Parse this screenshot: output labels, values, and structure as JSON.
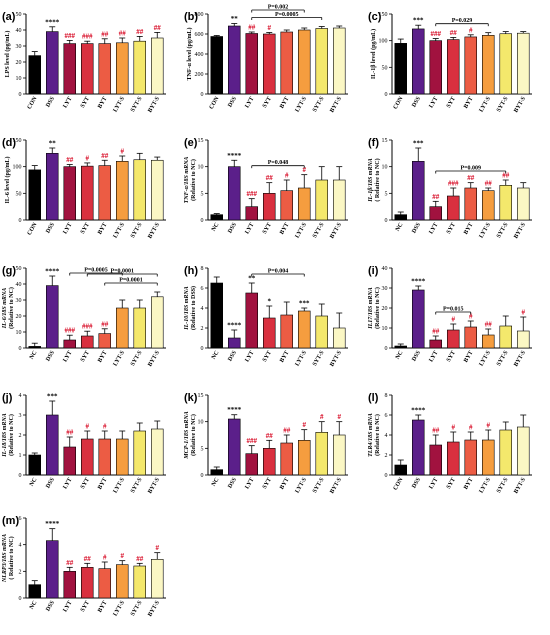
{
  "colors": {
    "CON": "#000000",
    "DSS": "#5b1f8a",
    "LYT": "#a1123f",
    "SYT": "#d9303f",
    "BYT": "#ec5c44",
    "LYT-S": "#f59d3f",
    "SYT-S": "#f4e86c",
    "BYT-S": "#fbf7c4",
    "NC": "#000000"
  },
  "chart_data": [
    {
      "id": "a",
      "type": "bar",
      "ylabel": "LPS level (pg/mL)",
      "ylim": [
        0,
        50
      ],
      "yticks": [
        0,
        10,
        20,
        30,
        40,
        50
      ],
      "categories": [
        "CON",
        "DSS",
        "LYT",
        "SYT",
        "BYT",
        "LYT-S",
        "SYT-S",
        "BYT-S"
      ],
      "values": [
        24,
        39,
        31.5,
        31.5,
        31.5,
        32,
        33,
        35
      ],
      "errors": [
        2.5,
        3,
        2,
        1.5,
        3,
        3,
        3,
        3.5
      ],
      "marks": [
        "",
        "****",
        "###",
        "###",
        "##",
        "##",
        "##",
        "##"
      ],
      "brackets": []
    },
    {
      "id": "b",
      "type": "bar",
      "ylabel": "TNF-α level (pg/mL)",
      "ylim": [
        0,
        800
      ],
      "yticks": [
        0,
        200,
        400,
        600,
        800
      ],
      "categories": [
        "CON",
        "DSS",
        "LYT",
        "SYT",
        "BYT",
        "LYT-S",
        "SYT-S",
        "BYT-S"
      ],
      "values": [
        575,
        680,
        605,
        600,
        620,
        640,
        655,
        660
      ],
      "errors": [
        10,
        25,
        15,
        15,
        20,
        20,
        20,
        20
      ],
      "marks": [
        "",
        "**",
        "##",
        "#",
        "",
        "",
        "",
        ""
      ],
      "brackets": [
        {
          "from": 2,
          "to": 6,
          "label": "P=0.0005"
        },
        {
          "from": 2,
          "to": 5,
          "label": "P=0.002"
        }
      ]
    },
    {
      "id": "c",
      "type": "bar",
      "ylabel": "IL-1β level (pg/mL)",
      "ylim": [
        0,
        150
      ],
      "yticks": [
        0,
        50,
        100,
        150
      ],
      "categories": [
        "CON",
        "DSS",
        "LYT",
        "SYT",
        "BYT",
        "LYT-S",
        "SYT-S",
        "BYT-S"
      ],
      "values": [
        95,
        122,
        100,
        102,
        107,
        110,
        113,
        114
      ],
      "errors": [
        8,
        7,
        4,
        4,
        4,
        5,
        4,
        3
      ],
      "marks": [
        "",
        "***",
        "###",
        "##",
        "#",
        "",
        "",
        ""
      ],
      "brackets": [
        {
          "from": 2,
          "to": 5,
          "label": "P=0.029"
        }
      ]
    },
    {
      "id": "d",
      "type": "bar",
      "ylabel": "IL-6 level (pg/mL)",
      "ylim": [
        0,
        150
      ],
      "yticks": [
        0,
        50,
        100,
        150
      ],
      "categories": [
        "CON",
        "DSS",
        "LYT",
        "SYT",
        "BYT",
        "LYT-S",
        "SYT-S",
        "BYT-S"
      ],
      "values": [
        94,
        125,
        100,
        101,
        102,
        110,
        113,
        112
      ],
      "errors": [
        8,
        10,
        4,
        6,
        10,
        10,
        12,
        6
      ],
      "marks": [
        "",
        "**",
        "##",
        "#",
        "##",
        "#",
        "",
        ""
      ],
      "brackets": []
    },
    {
      "id": "e",
      "type": "bar",
      "ylabel": "TNF-α/18S mRNA",
      "ylabel2": "(Relative to NC)",
      "ylim": [
        0,
        15
      ],
      "yticks": [
        0,
        5,
        10,
        15
      ],
      "categories": [
        "NC",
        "DSS",
        "LYT",
        "SYT",
        "BYT",
        "LYT-S",
        "SYT-S",
        "BYT-S"
      ],
      "values": [
        1,
        10,
        2.5,
        5,
        5.5,
        6,
        7.5,
        7.5
      ],
      "errors": [
        0.2,
        1.2,
        1.5,
        2,
        2,
        2.5,
        2.5,
        2.5
      ],
      "marks": [
        "",
        "****",
        "###",
        "##",
        "#",
        "#",
        "",
        ""
      ],
      "brackets": [
        {
          "from": 2,
          "to": 5,
          "label": "P=0.048"
        }
      ]
    },
    {
      "id": "f",
      "type": "bar",
      "ylabel": "IL-1β/18S mRNA",
      "ylabel2": "( Relative to NC)",
      "ylim": [
        0,
        15
      ],
      "yticks": [
        0,
        5,
        10,
        15
      ],
      "categories": [
        "NC",
        "DSS",
        "LYT",
        "SYT",
        "BYT",
        "LYT-S",
        "SYT-S",
        "BYT-S"
      ],
      "values": [
        1,
        11,
        2.5,
        4.5,
        6,
        5.5,
        6.5,
        6
      ],
      "errors": [
        0.5,
        2.5,
        1,
        1.5,
        1,
        0.5,
        1,
        1
      ],
      "marks": [
        "",
        "***",
        "##",
        "###",
        "##",
        "##",
        "##",
        ""
      ],
      "brackets": [
        {
          "from": 2,
          "to": 6,
          "label": "P=0.009"
        }
      ]
    },
    {
      "id": "g",
      "type": "bar",
      "ylabel": "IL-6/18S mRNA",
      "ylabel2": "(Relative to NC)",
      "ylim": [
        0,
        50
      ],
      "yticks": [
        0,
        10,
        20,
        30,
        40,
        50
      ],
      "categories": [
        "NC",
        "DSS",
        "LYT",
        "SYT",
        "BYT",
        "LYT-S",
        "SYT-S",
        "BYT-S"
      ],
      "values": [
        1,
        39,
        5,
        7.5,
        9,
        25,
        25,
        32
      ],
      "errors": [
        2,
        6,
        3,
        3,
        3,
        5,
        5,
        3
      ],
      "marks": [
        "",
        "****",
        "###",
        "###",
        "##",
        "",
        "",
        ""
      ],
      "brackets": [
        {
          "from": 4,
          "to": 7,
          "label": "P=0.0001"
        },
        {
          "from": 3,
          "to": 7,
          "label": "P=0.0001"
        },
        {
          "from": 2,
          "to": 5,
          "label": "P=0.0005"
        }
      ]
    },
    {
      "id": "h",
      "type": "bar",
      "ylabel": "IL-10/18S mRNA",
      "ylabel2": "(Relative to DSS)",
      "ylim": [
        0,
        8
      ],
      "yticks": [
        0,
        2,
        4,
        6,
        8
      ],
      "categories": [
        "NC",
        "DSS",
        "LYT",
        "SYT",
        "BYT",
        "LYT-S",
        "SYT-S",
        "BYT-S"
      ],
      "values": [
        6.5,
        1,
        5.5,
        3,
        3.3,
        3.7,
        3.2,
        2
      ],
      "errors": [
        0.6,
        0.8,
        1,
        1.2,
        1.3,
        0.3,
        1.2,
        1.5
      ],
      "marks": [
        "",
        "****",
        "**",
        "*",
        "",
        "***",
        "",
        ""
      ],
      "brackets": [
        {
          "from": 2,
          "to": 5,
          "label": "P=0.004"
        }
      ]
    },
    {
      "id": "i",
      "type": "bar",
      "ylabel": "IL17/18S mRNA",
      "ylabel2": "(Relative to NC)",
      "ylim": [
        0,
        40
      ],
      "yticks": [
        0,
        10,
        20,
        30,
        40
      ],
      "categories": [
        "NC",
        "DSS",
        "LYT",
        "SYT",
        "BYT",
        "LYT-S",
        "SYT-S",
        "BYT-S"
      ],
      "values": [
        1,
        29,
        4,
        9,
        10.5,
        6.5,
        11,
        8.5
      ],
      "errors": [
        1,
        2,
        2,
        3,
        3,
        3,
        5,
        7
      ],
      "marks": [
        "",
        "****",
        "##",
        "#",
        "#",
        "##",
        "",
        "#"
      ],
      "brackets": [
        {
          "from": 2,
          "to": 4,
          "label": "P=0.015"
        }
      ]
    },
    {
      "id": "j",
      "type": "bar",
      "ylabel": "IL-18/18S mRNA",
      "ylabel2": "(Relative to NC)",
      "ylim": [
        0,
        4
      ],
      "yticks": [
        0,
        1,
        2,
        3,
        4
      ],
      "categories": [
        "NC",
        "DSS",
        "LYT",
        "SYT",
        "BYT",
        "LYT-S",
        "SYT-S",
        "BYT-S"
      ],
      "values": [
        1,
        3,
        1.4,
        1.8,
        1.8,
        1.8,
        2.2,
        2.3
      ],
      "errors": [
        0.1,
        0.7,
        0.5,
        0.4,
        0.4,
        0.4,
        0.4,
        0.4
      ],
      "marks": [
        "",
        "***",
        "##",
        "#",
        "#",
        "",
        "",
        ""
      ],
      "brackets": []
    },
    {
      "id": "k",
      "type": "bar",
      "ylabel": "MCP-1/18S mRNA",
      "ylabel2": "(Relative to NC)",
      "ylim": [
        0,
        15
      ],
      "yticks": [
        0,
        5,
        10,
        15
      ],
      "categories": [
        "NC",
        "DSS",
        "LYT",
        "SYT",
        "BYT",
        "LYT-S",
        "SYT-S",
        "BYT-S"
      ],
      "values": [
        1,
        10.5,
        4,
        5,
        6,
        6.5,
        8,
        7.5
      ],
      "errors": [
        0.5,
        0.8,
        1.5,
        1.5,
        1.5,
        2,
        2,
        2.5
      ],
      "marks": [
        "",
        "****",
        "###",
        "##",
        "##",
        "#",
        "#",
        "#"
      ],
      "brackets": []
    },
    {
      "id": "l",
      "type": "bar",
      "ylabel": "TLR4/18S mRNA",
      "ylabel2": "(Relative to NC)",
      "ylim": [
        0,
        8
      ],
      "yticks": [
        0,
        2,
        4,
        6,
        8
      ],
      "categories": [
        "CON",
        "DSS",
        "LYT",
        "SYT",
        "BYT",
        "LYT-S",
        "SYT-S",
        "BYT-S"
      ],
      "values": [
        1,
        5.5,
        3,
        3.3,
        3.5,
        3.5,
        4.5,
        4.8
      ],
      "errors": [
        0.5,
        0.5,
        1,
        1,
        0.8,
        1,
        0.8,
        1.2
      ],
      "marks": [
        "",
        "****",
        "##",
        "#",
        "#",
        "#",
        "",
        ""
      ],
      "brackets": []
    },
    {
      "id": "m",
      "type": "bar",
      "ylabel": "NLRP3/18S mRNA",
      "ylabel2": "( Relative to NC)",
      "ylim": [
        0,
        6
      ],
      "yticks": [
        0,
        2,
        4,
        6
      ],
      "categories": [
        "NC",
        "DSS",
        "LYT",
        "SYT",
        "BYT",
        "LYT-S",
        "SYT-S",
        "BYT-S"
      ],
      "values": [
        1,
        4.3,
        2,
        2.3,
        2.2,
        2.5,
        2.4,
        2.9
      ],
      "errors": [
        0.3,
        0.9,
        0.3,
        0.3,
        0.5,
        0.3,
        0.2,
        0.5
      ],
      "marks": [
        "",
        "****",
        "##",
        "##",
        "#",
        "#",
        "##",
        "#"
      ],
      "brackets": []
    }
  ]
}
